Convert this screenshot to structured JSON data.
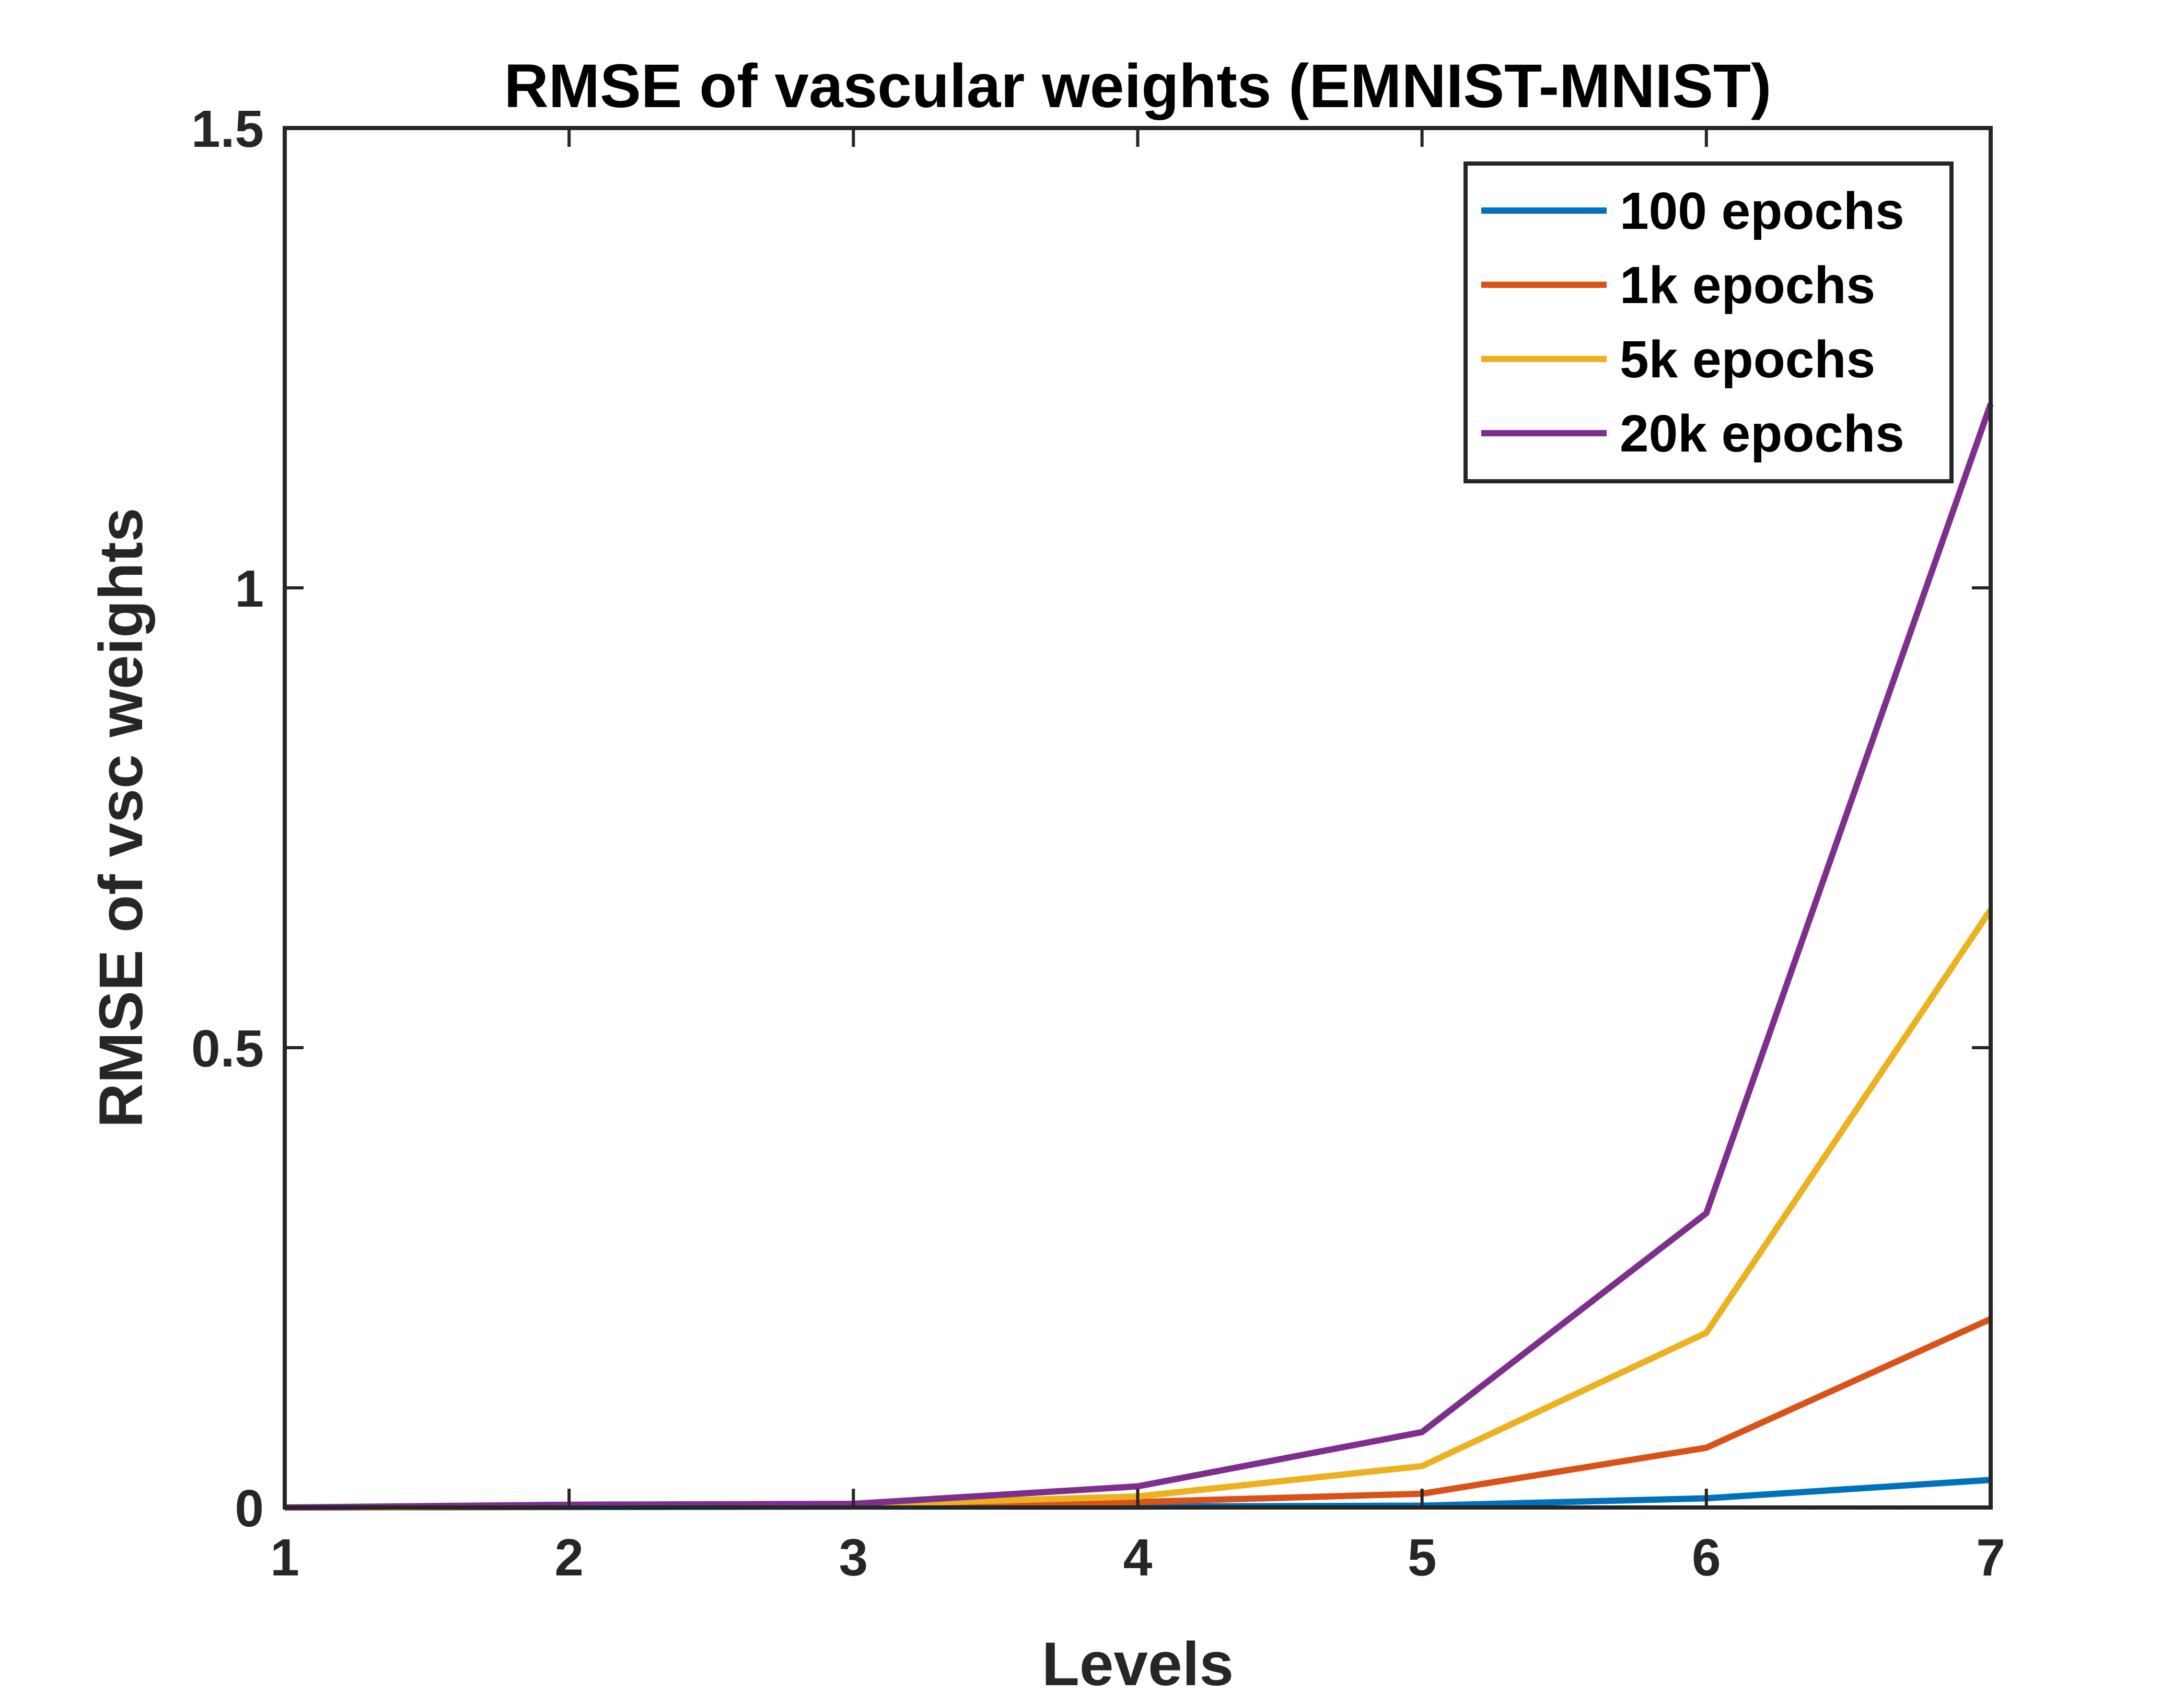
{
  "chart_data": {
    "type": "line",
    "title": "RMSE of vascular weights (EMNIST-MNIST)",
    "xlabel": "Levels",
    "ylabel": "RMSE of vsc weights",
    "x": [
      1,
      2,
      3,
      4,
      5,
      6,
      7
    ],
    "xlim": [
      1,
      7
    ],
    "ylim": [
      0,
      1.5
    ],
    "xticks": [
      1,
      2,
      3,
      4,
      5,
      6,
      7
    ],
    "yticks": [
      0,
      0.5,
      1,
      1.5
    ],
    "xtick_labels": [
      "1",
      "2",
      "3",
      "4",
      "5",
      "6",
      "7"
    ],
    "ytick_labels": [
      "0",
      "0.5",
      "1",
      "1.5"
    ],
    "grid": false,
    "legend_position": "top-right",
    "series": [
      {
        "name": "100 epochs",
        "color": "#0072BD",
        "values": [
          0.0,
          0.0005,
          0.001,
          0.001,
          0.002,
          0.01,
          0.03
        ]
      },
      {
        "name": "1k epochs",
        "color": "#D95319",
        "values": [
          0.0,
          0.001,
          0.002,
          0.006,
          0.015,
          0.065,
          0.205
        ]
      },
      {
        "name": "5k epochs",
        "color": "#EDB120",
        "values": [
          0.0,
          0.002,
          0.003,
          0.012,
          0.045,
          0.19,
          0.65
        ]
      },
      {
        "name": "20k epochs",
        "color": "#7E2F8E",
        "values": [
          0.0,
          0.003,
          0.004,
          0.023,
          0.082,
          0.32,
          1.2
        ]
      }
    ]
  }
}
